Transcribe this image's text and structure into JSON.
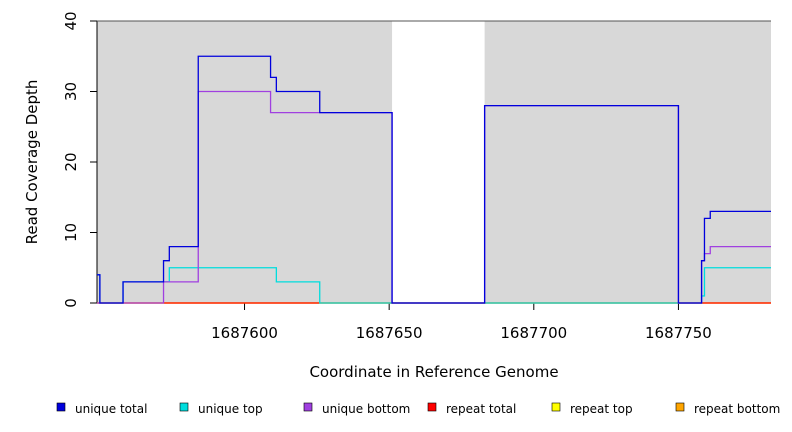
{
  "chart_data": {
    "type": "line",
    "title": "",
    "xlabel": "Coordinate in Reference Genome",
    "ylabel": "Read Coverage Depth",
    "xlim": [
      1687549,
      1687782
    ],
    "ylim": [
      0,
      40
    ],
    "x_ticks": [
      1687600,
      1687650,
      1687700,
      1687750
    ],
    "y_ticks": [
      0,
      10,
      20,
      30,
      40
    ],
    "x_tick_labels": [
      "1687600",
      "1687650",
      "1687700",
      "1687750"
    ],
    "y_tick_labels": [
      "0",
      "10",
      "20",
      "30",
      "40"
    ],
    "shaded_regions": [
      [
        1687549,
        1687651
      ],
      [
        1687683,
        1687782
      ]
    ],
    "shade_color": "#d8d8d8",
    "legend_position": "bottom",
    "series": [
      {
        "name": "unique total",
        "color": "#0000dd",
        "steps": [
          [
            1687549,
            4
          ],
          [
            1687550,
            0
          ],
          [
            1687558,
            3
          ],
          [
            1687572,
            6
          ],
          [
            1687574,
            8
          ],
          [
            1687584,
            35
          ],
          [
            1687609,
            32
          ],
          [
            1687611,
            30
          ],
          [
            1687626,
            27
          ],
          [
            1687651,
            0
          ],
          [
            1687683,
            28
          ],
          [
            1687750,
            0
          ],
          [
            1687758,
            6
          ],
          [
            1687759,
            12
          ],
          [
            1687761,
            13
          ],
          [
            1687782,
            13
          ]
        ]
      },
      {
        "name": "unique top",
        "color": "#00dddd",
        "steps": [
          [
            1687549,
            4
          ],
          [
            1687550,
            0
          ],
          [
            1687558,
            3
          ],
          [
            1687574,
            5
          ],
          [
            1687611,
            3
          ],
          [
            1687626,
            0
          ],
          [
            1687758,
            1
          ],
          [
            1687759,
            5
          ],
          [
            1687782,
            5
          ]
        ]
      },
      {
        "name": "unique bottom",
        "color": "#a040e0",
        "steps": [
          [
            1687549,
            0
          ],
          [
            1687572,
            3
          ],
          [
            1687584,
            30
          ],
          [
            1687609,
            27
          ],
          [
            1687651,
            0
          ],
          [
            1687683,
            28
          ],
          [
            1687750,
            0
          ],
          [
            1687758,
            6
          ],
          [
            1687759,
            7
          ],
          [
            1687761,
            8
          ],
          [
            1687782,
            8
          ]
        ]
      },
      {
        "name": "repeat total",
        "color": "#ff0000",
        "steps": [
          [
            1687549,
            0
          ],
          [
            1687782,
            0
          ]
        ]
      },
      {
        "name": "repeat top",
        "color": "#ffff00",
        "steps": [
          [
            1687549,
            0
          ],
          [
            1687782,
            0
          ]
        ]
      },
      {
        "name": "repeat bottom",
        "color": "#ffa500",
        "steps": [
          [
            1687549,
            0
          ],
          [
            1687782,
            0
          ]
        ]
      }
    ]
  }
}
